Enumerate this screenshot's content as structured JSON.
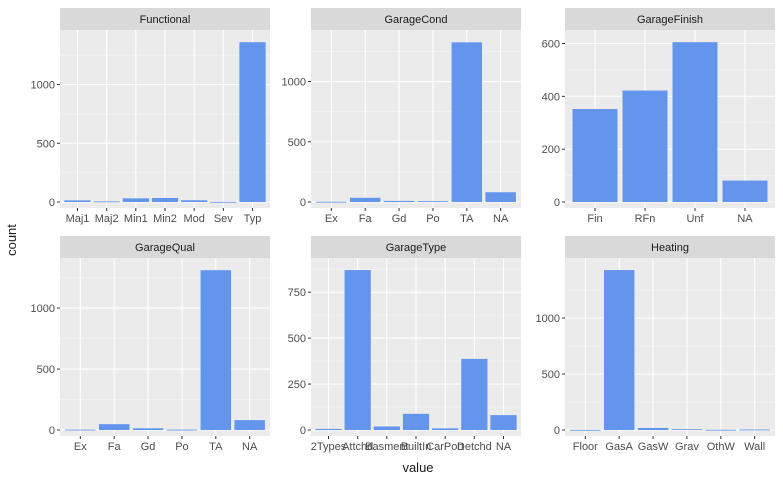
{
  "chart_data": {
    "type": "bar",
    "xlabel": "value",
    "ylabel": "count",
    "bar_color": "#6495ED",
    "panels": [
      {
        "facet": "Functional",
        "categories": [
          "Maj1",
          "Maj2",
          "Min1",
          "Min2",
          "Mod",
          "Sev",
          "Typ"
        ],
        "values": [
          14,
          5,
          31,
          34,
          15,
          1,
          1360
        ],
        "yticks": [
          0,
          500,
          1000
        ],
        "ylim": [
          0,
          1430
        ]
      },
      {
        "facet": "GarageCond",
        "categories": [
          "Ex",
          "Fa",
          "Gd",
          "Po",
          "TA",
          "NA"
        ],
        "values": [
          2,
          35,
          9,
          7,
          1326,
          81
        ],
        "yticks": [
          0,
          500,
          1000
        ],
        "ylim": [
          0,
          1395
        ]
      },
      {
        "facet": "GarageFinish",
        "categories": [
          "Fin",
          "RFn",
          "Unf",
          "NA"
        ],
        "values": [
          352,
          422,
          605,
          81
        ],
        "yticks": [
          0,
          200,
          400,
          600
        ],
        "ylim": [
          0,
          636
        ]
      },
      {
        "facet": "GarageQual",
        "categories": [
          "Ex",
          "Fa",
          "Gd",
          "Po",
          "TA",
          "NA"
        ],
        "values": [
          3,
          48,
          14,
          3,
          1311,
          81
        ],
        "yticks": [
          0,
          500,
          1000
        ],
        "ylim": [
          0,
          1378
        ]
      },
      {
        "facet": "GarageType",
        "categories": [
          "2Types",
          "Attchd",
          "Basment",
          "BuiltIn",
          "CarPort",
          "Detchd",
          "NA"
        ],
        "values": [
          6,
          870,
          19,
          88,
          9,
          387,
          81
        ],
        "yticks": [
          0,
          250,
          500,
          750
        ],
        "ylim": [
          0,
          914
        ]
      },
      {
        "facet": "Heating",
        "categories": [
          "Floor",
          "GasA",
          "GasW",
          "Grav",
          "OthW",
          "Wall"
        ],
        "values": [
          1,
          1428,
          18,
          7,
          2,
          4
        ],
        "yticks": [
          0,
          500,
          1000
        ],
        "ylim": [
          0,
          1500
        ]
      }
    ]
  }
}
